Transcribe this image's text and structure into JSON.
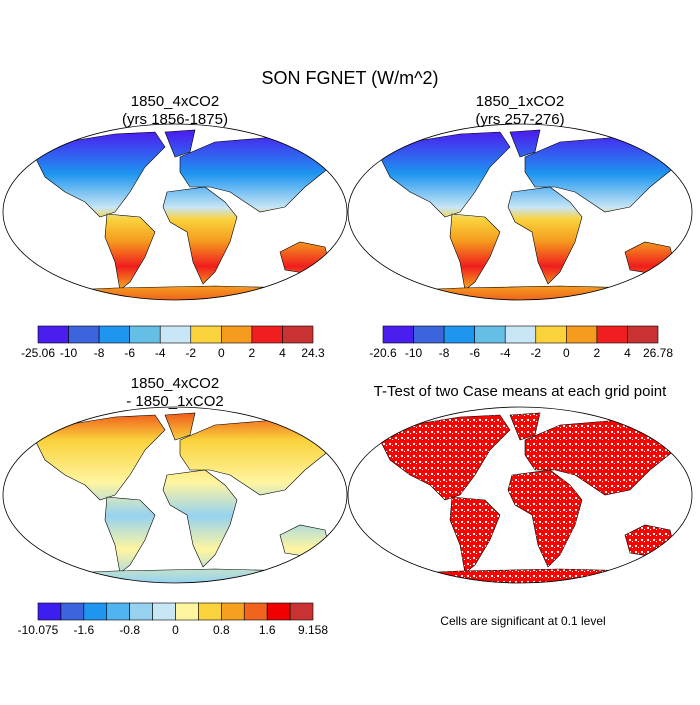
{
  "title": "SON FGNET (W/m^2)",
  "panels": [
    {
      "title": [
        "1850_4xCO2",
        "(yrs 1856-1875)"
      ],
      "style": "mean",
      "colorbar": {
        "colors": [
          "#4b1ef0",
          "#3c64dc",
          "#1e96f0",
          "#64bee6",
          "#c8e6f5",
          "#fad23c",
          "#f59b1e",
          "#f01e1e",
          "#c83232"
        ],
        "labels": [
          "-25.06",
          "-10",
          "-8",
          "-6",
          "-4",
          "-2",
          "0",
          "2",
          "4",
          "24.3"
        ]
      }
    },
    {
      "title": [
        "1850_1xCO2",
        "(yrs 257-276)"
      ],
      "style": "mean",
      "colorbar": {
        "colors": [
          "#4b1ef0",
          "#3c64dc",
          "#1e96f0",
          "#64bee6",
          "#c8e6f5",
          "#fad23c",
          "#f59b1e",
          "#f01e1e",
          "#c83232"
        ],
        "labels": [
          "-20.6",
          "-10",
          "-8",
          "-6",
          "-4",
          "-2",
          "0",
          "2",
          "4",
          "26.78"
        ]
      }
    },
    {
      "title": [
        "1850_4xCO2",
        "- 1850_1xCO2"
      ],
      "style": "diff",
      "colorbar": {
        "colors": [
          "#3c1ef0",
          "#3c64dc",
          "#1e96f0",
          "#50b4f0",
          "#96d2f0",
          "#c8e6f5",
          "#fff5a0",
          "#fad23c",
          "#f5a01e",
          "#f0641e",
          "#f00000",
          "#c83232"
        ],
        "labels": [
          "-10.075",
          null,
          "-1.6",
          null,
          "-0.8",
          null,
          "0",
          null,
          "0.8",
          null,
          "1.6",
          null,
          "9.158"
        ]
      }
    },
    {
      "title": [
        "T-Test of two Case means at each grid point"
      ],
      "style": "ttest",
      "note": "Cells are significant at 0.1 level"
    }
  ]
}
